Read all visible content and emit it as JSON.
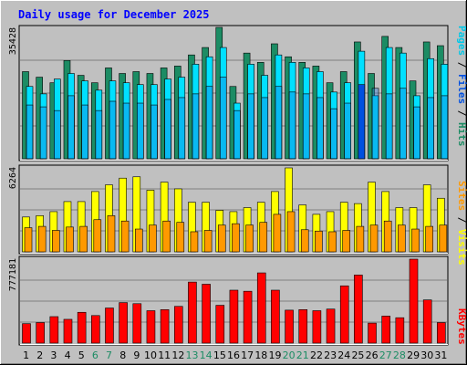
{
  "title": "Daily usage for December 2025",
  "panels": [
    {
      "max_label": "35428"
    },
    {
      "max_label": "6264"
    },
    {
      "max_label": "777181"
    }
  ],
  "legends": {
    "top": [
      {
        "text": "Pages",
        "color": "#00c8e8"
      },
      {
        "text": " / ",
        "color": "#000000"
      },
      {
        "text": "Files",
        "color": "#0050e0"
      },
      {
        "text": " / ",
        "color": "#000000"
      },
      {
        "text": "Hits",
        "color": "#1c8c64"
      }
    ],
    "mid": [
      {
        "text": "Sites",
        "color": "#ff9900"
      },
      {
        "text": " / ",
        "color": "#000000"
      },
      {
        "text": "Visits",
        "color": "#ffff00"
      }
    ],
    "bottom": [
      {
        "text": "KBytes",
        "color": "#ff0000"
      }
    ]
  },
  "colors": {
    "hits": "#1c8c64",
    "files": "#0050e0",
    "pages": "#00e0ff",
    "visits": "#ffff00",
    "sites": "#ff9900",
    "kbytes": "#ff0000",
    "weekend_label": "#1c8c64",
    "weekday_label": "#000000"
  },
  "chart_data": {
    "type": "bar",
    "title": "Daily usage for December 2025",
    "categories": [
      "1",
      "2",
      "3",
      "4",
      "5",
      "6",
      "7",
      "8",
      "9",
      "10",
      "11",
      "12",
      "13",
      "14",
      "15",
      "16",
      "17",
      "18",
      "19",
      "20",
      "21",
      "22",
      "23",
      "24",
      "25",
      "26",
      "27",
      "28",
      "29",
      "30",
      "31"
    ],
    "weekend_days": [
      6,
      7,
      13,
      14,
      20,
      21,
      27,
      28
    ],
    "current_day": 25,
    "panels": [
      {
        "ymax": 35428,
        "series": [
          {
            "name": "Hits",
            "values": [
              23500,
              22000,
              20500,
              26500,
              22500,
              20500,
              24500,
              23000,
              23500,
              23000,
              24500,
              25000,
              28000,
              30000,
              35428,
              19500,
              28500,
              26000,
              31000,
              27500,
              26000,
              25000,
              20500,
              23500,
              31500,
              23000,
              33000,
              30000,
              21000,
              31500,
              30500
            ]
          },
          {
            "name": "Files",
            "values": [
              14500,
              14000,
              13000,
              17000,
              14500,
              13000,
              15500,
              15000,
              15000,
              14500,
              16000,
              16500,
              17500,
              19500,
              22000,
              13000,
              17500,
              16500,
              19500,
              18000,
              17500,
              16500,
              13500,
              15000,
              20000,
              19000,
              17500,
              19000,
              14000,
              16500,
              17000
            ]
          },
          {
            "name": "Pages",
            "values": [
              19500,
              17500,
              21500,
              23000,
              21000,
              18500,
              21000,
              20500,
              20000,
              20000,
              21500,
              22000,
              25500,
              27500,
              30000,
              15000,
              25500,
              22500,
              28000,
              26000,
              24500,
              23500,
              18000,
              20500,
              29000,
              17000,
              30000,
              28500,
              17000,
              27000,
              25500
            ]
          }
        ]
      },
      {
        "ymax": 6264,
        "series": [
          {
            "name": "Visits",
            "values": [
              2600,
              2700,
              3000,
              3750,
              3750,
              4500,
              5000,
              5500,
              5600,
              4600,
              5200,
              4700,
              3700,
              3700,
              3100,
              3000,
              3300,
              3700,
              4500,
              6264,
              3500,
              2800,
              3000,
              3700,
              3600,
              5200,
              4500,
              3300,
              3300,
              5000,
              4000
            ]
          },
          {
            "name": "Sites",
            "values": [
              1800,
              1900,
              1600,
              1850,
              1900,
              2400,
              2700,
              2300,
              1700,
              2000,
              2300,
              2200,
              1500,
              1600,
              2000,
              2100,
              2000,
              2200,
              2800,
              3000,
              1650,
              1550,
              1500,
              1600,
              1900,
              2000,
              2300,
              2000,
              1700,
              1900,
              2000
            ]
          }
        ]
      },
      {
        "ymax": 777181,
        "series": [
          {
            "name": "KBytes",
            "values": [
              180000,
              190000,
              245000,
              220000,
              285000,
              255000,
              325000,
              375000,
              365000,
              300000,
              310000,
              340000,
              565000,
              545000,
              350000,
              490000,
              480000,
              650000,
              490000,
              305000,
              310000,
              300000,
              315000,
              530000,
              630000,
              185000,
              250000,
              235000,
              777181,
              400000,
              190000
            ]
          }
        ]
      }
    ]
  }
}
